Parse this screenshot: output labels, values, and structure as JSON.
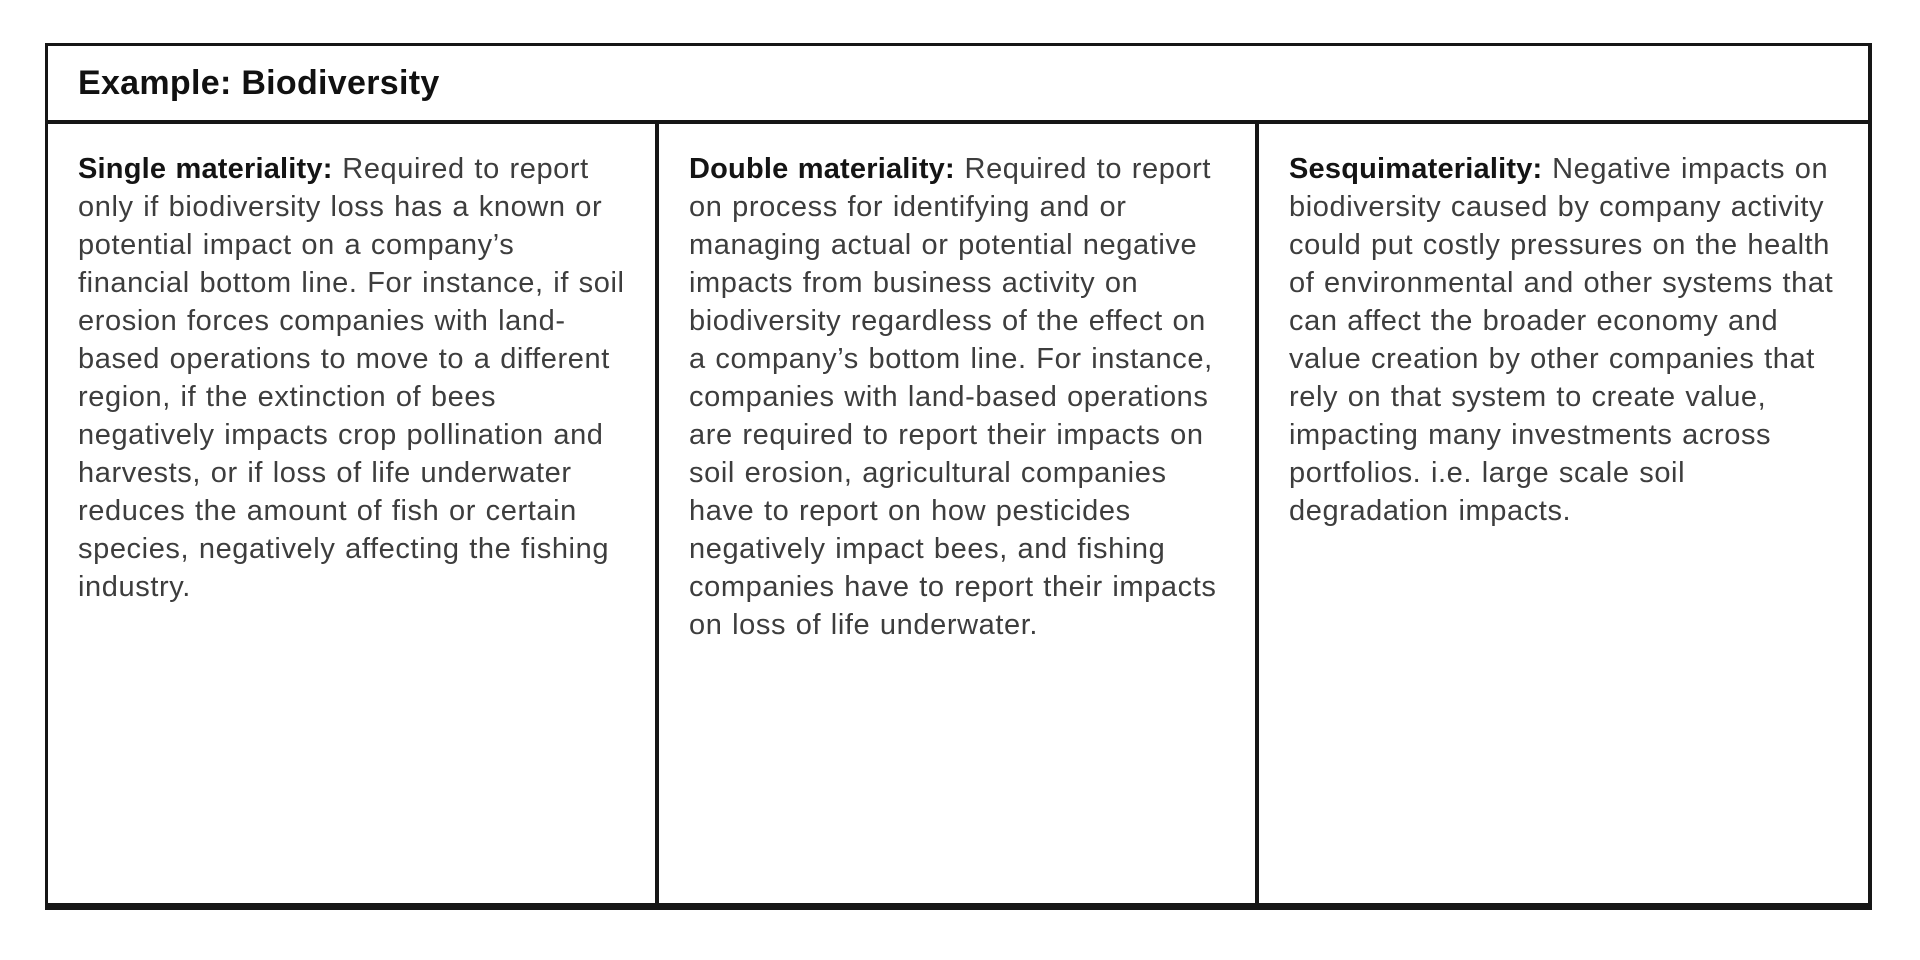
{
  "table": {
    "title": "Example: Biodiversity",
    "columns": [
      {
        "heading": "Single materiality:",
        "body": "Required to report only if biodiversity loss has a known or potential impact on a company’s financial bottom line. For instance, if soil erosion forces companies with land-based operations to move to a different region, if the extinction of bees negatively impacts crop pollination and harvests, or if loss of life underwater reduces the amount of fish or certain species, negatively affecting the fishing industry."
      },
      {
        "heading": "Double materiality:",
        "body": "Required to report on process for identifying and or managing actual or potential negative impacts from business activity on biodiversity regardless of the effect on a company’s bottom line. For instance, companies with land-based operations are required to report their impacts on soil erosion, agricultural companies have to report on how pesticides negatively impact bees, and fishing companies have to report their impacts on loss of life underwater."
      },
      {
        "heading": "Sesquimateriality:",
        "body": "Negative impacts on biodiversity caused by company activity could put costly pressures on the health of environmental and other systems that can affect the broader economy and value creation by other companies that rely on that system to create value, impacting many investments across portfolios. i.e. large scale soil degradation impacts."
      }
    ]
  },
  "colors": {
    "border": "#161616",
    "heading_text": "#141414",
    "body_text": "#3d3d3d",
    "background": "#ffffff"
  }
}
